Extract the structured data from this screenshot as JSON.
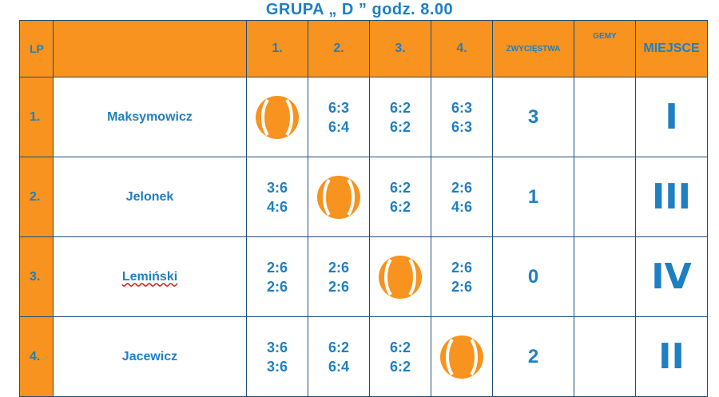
{
  "title": "GRUPA „ D ” godz. 8.00",
  "headers": {
    "lp": "LP",
    "c1": "1.",
    "c2": "2.",
    "c3": "3.",
    "c4": "4.",
    "wins": "ZWYCIĘSTWA",
    "games": "GEMY",
    "place": "MIEJSCE"
  },
  "rows": [
    {
      "lp": "1.",
      "name": "Maksymowicz",
      "c1": "",
      "c2": [
        "6:3",
        "6:4"
      ],
      "c3": [
        "6:2",
        "6:2"
      ],
      "c4": [
        "6:3",
        "6:3"
      ],
      "wins": "3",
      "games": "",
      "place": "I"
    },
    {
      "lp": "2.",
      "name": "Jelonek",
      "c1": [
        "3:6",
        "4:6"
      ],
      "c2": "",
      "c3": [
        "6:2",
        "6:2"
      ],
      "c4": [
        "2:6",
        "4:6"
      ],
      "wins": "1",
      "games": "",
      "place": "III"
    },
    {
      "lp": "3.",
      "name": "Lemiński",
      "c1": [
        "2:6",
        "2:6"
      ],
      "c2": [
        "2:6",
        "2:6"
      ],
      "c3": "",
      "c4": [
        "2:6",
        "2:6"
      ],
      "wins": "0",
      "games": "",
      "place": "IV"
    },
    {
      "lp": "4.",
      "name": "Jacewicz",
      "c1": [
        "3:6",
        "3:6"
      ],
      "c2": [
        "6:2",
        "6:4"
      ],
      "c3": [
        "6:2",
        "6:2"
      ],
      "c4": "",
      "wins": "2",
      "games": "",
      "place": "II"
    }
  ],
  "ball_icon": "tennis-ball-icon",
  "colors": {
    "header_bg": "#f7931e",
    "text": "#1f7fc3",
    "ball": "#f7931e"
  }
}
